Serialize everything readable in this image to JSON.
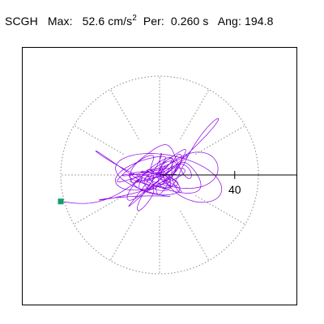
{
  "header": {
    "station": "SCGH",
    "max_label": "Max:",
    "max_value": "52.6",
    "max_unit": "cm/s",
    "max_unit_power": "2",
    "per_label": "Per:",
    "per_value": "0.260 s",
    "ang_label": "Ang:",
    "ang_value": "194.8"
  },
  "colors": {
    "trace": "#8a00e6",
    "marker": "#12a06c",
    "frame": "#000000",
    "rings": "#888888"
  },
  "chart_data": {
    "type": "polar-particle-motion",
    "units": "cm/s2",
    "max_amplitude": 52.6,
    "ring_radius": 52.6,
    "radial_ticks": [
      40
    ],
    "radial_tick_labels": [
      "40"
    ],
    "spoke_step_deg": 30,
    "grid": true,
    "seed": 7,
    "n_points": 1500,
    "start_point": [
      -52.6,
      -14.1
    ]
  }
}
